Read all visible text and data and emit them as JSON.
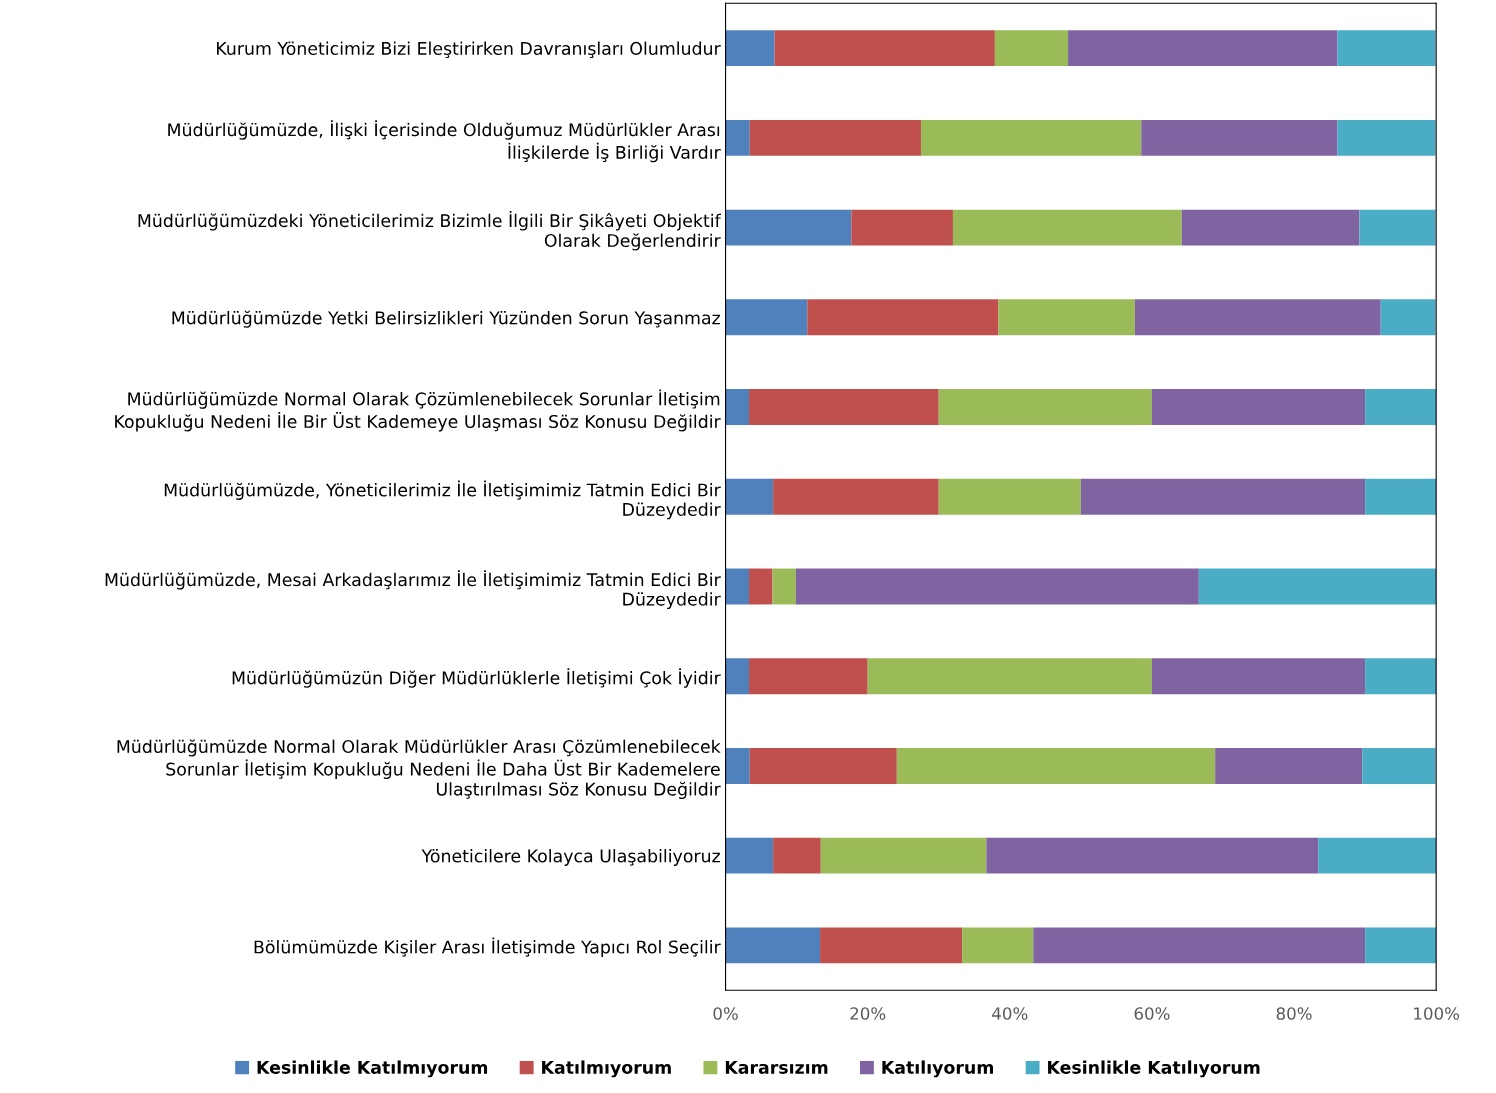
{
  "chart_data": {
    "type": "bar",
    "orientation": "horizontal",
    "stacked": true,
    "categories": [
      "Kurum Yöneticimiz Bizi Eleştirirken Davranışları Olumludur",
      "Müdürlüğümüzde, İlişki İçerisinde Olduğumuz Müdürlükler Arası\nİlişkilerde İş Birliği Vardır",
      "Müdürlüğümüzdeki Yöneticilerimiz Bizimle İlgili Bir Şikâyeti Objektif\nOlarak Değerlendirir",
      "Müdürlüğümüzde Yetki Belirsizlikleri Yüzünden Sorun Yaşanmaz",
      "Müdürlüğümüzde Normal Olarak Çözümlenebilecek Sorunlar İletişim\nKopukluğu Nedeni İle Bir Üst Kademeye Ulaşması Söz Konusu Değildir",
      "Müdürlüğümüzde, Yöneticilerimiz İle İletişimimiz Tatmin Edici Bir\nDüzeydedir",
      "Müdürlüğümüzde, Mesai Arkadaşlarımız İle İletişimimiz Tatmin Edici Bir\nDüzeydedir",
      "Müdürlüğümüzün Diğer Müdürlüklerle İletişimi Çok İyidir",
      "Müdürlüğümüzde Normal Olarak Müdürlükler Arası Çözümlenebilecek\nSorunlar İletişim Kopukluğu Nedeni İle Daha Üst Bir Kademelere\nUlaştırılması Söz Konusu Değildir",
      "Yöneticilere Kolayca Ulaşabiliyoruz",
      "Bölümümüzde Kişiler Arası İletişimde Yapıcı Rol Seçilir"
    ],
    "series": [
      {
        "name": "Kesinlikle Katılmıyorum",
        "color": "#4f81bd",
        "values": [
          6.9,
          3.4,
          17.7,
          11.5,
          3.3,
          6.7,
          3.3,
          3.3,
          3.4,
          6.7,
          13.3
        ]
      },
      {
        "name": "Katılmıyorum",
        "color": "#c0504d",
        "values": [
          31.0,
          24.1,
          14.3,
          26.9,
          26.7,
          23.3,
          3.3,
          16.7,
          20.7,
          6.7,
          20.0
        ]
      },
      {
        "name": "Kararsızım",
        "color": "#9bbb59",
        "values": [
          10.3,
          31.0,
          32.2,
          19.2,
          30.0,
          20.0,
          3.3,
          40.0,
          44.8,
          23.3,
          10.0
        ]
      },
      {
        "name": "Katılıyorum",
        "color": "#8064a2",
        "values": [
          37.9,
          27.6,
          25.0,
          34.6,
          30.0,
          40.0,
          56.7,
          30.0,
          20.7,
          46.7,
          46.7
        ]
      },
      {
        "name": "Kesinlikle Katılıyorum",
        "color": "#4bacc6",
        "values": [
          13.8,
          13.8,
          10.7,
          7.7,
          10.0,
          10.0,
          33.4,
          10.0,
          10.3,
          16.6,
          10.0
        ]
      }
    ],
    "xlim": [
      0,
      100
    ],
    "xticks": [
      {
        "value": 0,
        "label": "0%"
      },
      {
        "value": 20,
        "label": "20%"
      },
      {
        "value": 40,
        "label": "40%"
      },
      {
        "value": 60,
        "label": "60%"
      },
      {
        "value": 80,
        "label": "80%"
      },
      {
        "value": 100,
        "label": "100%"
      }
    ],
    "grid": false,
    "legend": "bottom"
  }
}
